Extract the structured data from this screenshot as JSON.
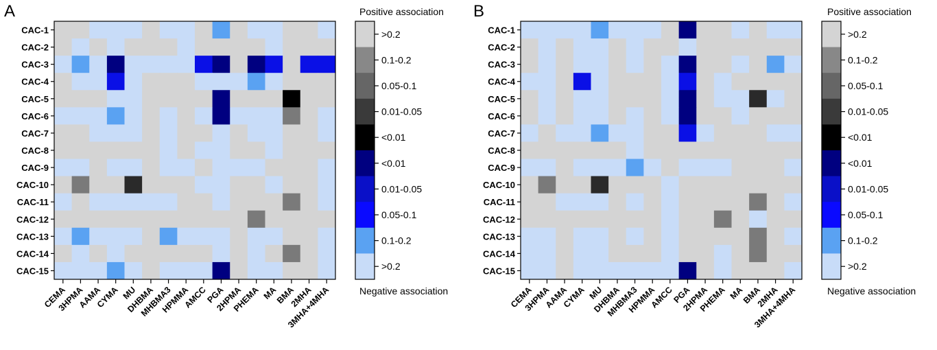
{
  "chart_data": [
    {
      "type": "heatmap",
      "panel_label": "A",
      "rows": [
        "CAC-1",
        "CAC-2",
        "CAC-3",
        "CAC-4",
        "CAC-5",
        "CAC-6",
        "CAC-7",
        "CAC-8",
        "CAC-9",
        "CAC-10",
        "CAC-11",
        "CAC-12",
        "CAC-13",
        "CAC-14",
        "CAC-15"
      ],
      "columns": [
        "CEMA",
        "3HPMA",
        "AAMA",
        "CYMA",
        "MU",
        "DHBMA",
        "MHBMA3",
        "HPMMA",
        "AMCC",
        "PGA",
        "2HPMA",
        "PHEMA",
        "MA",
        "BMA",
        "2MHA",
        "3MHA+4MHA"
      ],
      "category_values": [
        [
          5,
          5,
          1,
          1,
          1,
          5,
          1,
          1,
          5,
          2,
          5,
          1,
          1,
          5,
          5,
          1
        ],
        [
          5,
          1,
          5,
          1,
          5,
          5,
          5,
          1,
          5,
          5,
          5,
          5,
          1,
          5,
          5,
          5
        ],
        [
          1,
          2,
          1,
          7,
          1,
          1,
          1,
          1,
          8,
          7,
          5,
          7,
          8,
          5,
          8,
          8
        ],
        [
          5,
          1,
          1,
          8,
          1,
          5,
          5,
          5,
          1,
          1,
          1,
          2,
          1,
          5,
          5,
          5
        ],
        [
          5,
          5,
          5,
          1,
          1,
          5,
          5,
          5,
          5,
          7,
          5,
          5,
          5,
          11,
          5,
          5
        ],
        [
          1,
          1,
          1,
          2,
          1,
          5,
          1,
          5,
          1,
          7,
          1,
          1,
          1,
          9,
          5,
          1
        ],
        [
          5,
          5,
          1,
          1,
          1,
          5,
          1,
          5,
          5,
          1,
          5,
          1,
          1,
          5,
          5,
          1
        ],
        [
          5,
          5,
          5,
          5,
          5,
          5,
          1,
          5,
          1,
          1,
          5,
          5,
          1,
          5,
          5,
          5
        ],
        [
          1,
          1,
          5,
          1,
          1,
          5,
          1,
          1,
          5,
          1,
          1,
          1,
          5,
          5,
          5,
          1
        ],
        [
          5,
          9,
          5,
          5,
          10,
          5,
          5,
          5,
          1,
          1,
          5,
          5,
          1,
          5,
          5,
          1
        ],
        [
          1,
          5,
          1,
          1,
          1,
          1,
          1,
          5,
          5,
          1,
          5,
          5,
          5,
          9,
          5,
          1
        ],
        [
          5,
          5,
          5,
          5,
          5,
          5,
          5,
          5,
          5,
          5,
          5,
          9,
          5,
          5,
          5,
          5
        ],
        [
          1,
          2,
          1,
          1,
          1,
          5,
          2,
          1,
          1,
          1,
          5,
          1,
          1,
          5,
          5,
          1
        ],
        [
          5,
          1,
          5,
          1,
          5,
          5,
          5,
          5,
          5,
          1,
          5,
          1,
          5,
          9,
          5,
          1
        ],
        [
          1,
          1,
          1,
          2,
          1,
          5,
          1,
          1,
          1,
          7,
          5,
          1,
          1,
          5,
          5,
          1
        ]
      ]
    },
    {
      "type": "heatmap",
      "panel_label": "B",
      "rows": [
        "CAC-1",
        "CAC-2",
        "CAC-3",
        "CAC-4",
        "CAC-5",
        "CAC-6",
        "CAC-7",
        "CAC-8",
        "CAC-9",
        "CAC-10",
        "CAC-11",
        "CAC-12",
        "CAC-13",
        "CAC-14",
        "CAC-15"
      ],
      "columns": [
        "CEMA",
        "3HPMA",
        "AAMA",
        "CYMA",
        "MU",
        "DHBMA",
        "MHBMA3",
        "HPMMA",
        "AMCC",
        "PGA",
        "2HPMA",
        "PHEMA",
        "MA",
        "BMA",
        "2MHA",
        "3MHA+4MHA"
      ],
      "category_values": [
        [
          1,
          1,
          1,
          1,
          2,
          1,
          1,
          1,
          5,
          7,
          5,
          5,
          1,
          5,
          1,
          1
        ],
        [
          5,
          1,
          5,
          1,
          1,
          5,
          1,
          5,
          5,
          1,
          5,
          5,
          5,
          5,
          5,
          5
        ],
        [
          5,
          1,
          5,
          1,
          1,
          5,
          1,
          5,
          1,
          7,
          5,
          5,
          1,
          5,
          2,
          1
        ],
        [
          1,
          1,
          5,
          8,
          1,
          5,
          5,
          5,
          1,
          8,
          5,
          1,
          5,
          5,
          5,
          5
        ],
        [
          5,
          1,
          5,
          1,
          1,
          5,
          5,
          5,
          1,
          7,
          5,
          1,
          1,
          10,
          1,
          5
        ],
        [
          5,
          1,
          5,
          1,
          1,
          5,
          1,
          5,
          1,
          7,
          5,
          5,
          1,
          5,
          5,
          5
        ],
        [
          1,
          5,
          1,
          1,
          2,
          1,
          1,
          5,
          5,
          8,
          1,
          5,
          5,
          5,
          1,
          1
        ],
        [
          5,
          5,
          5,
          5,
          5,
          5,
          1,
          5,
          5,
          5,
          5,
          5,
          5,
          5,
          5,
          5
        ],
        [
          1,
          1,
          5,
          1,
          1,
          1,
          2,
          1,
          5,
          1,
          1,
          1,
          5,
          5,
          5,
          1
        ],
        [
          5,
          9,
          5,
          5,
          10,
          5,
          5,
          5,
          1,
          5,
          5,
          5,
          5,
          5,
          5,
          5
        ],
        [
          5,
          5,
          1,
          1,
          1,
          5,
          1,
          5,
          1,
          5,
          5,
          5,
          5,
          9,
          5,
          1
        ],
        [
          5,
          5,
          5,
          5,
          5,
          5,
          5,
          5,
          1,
          5,
          5,
          9,
          5,
          1,
          5,
          5
        ],
        [
          1,
          1,
          5,
          1,
          1,
          5,
          1,
          5,
          1,
          5,
          5,
          5,
          5,
          9,
          5,
          1
        ],
        [
          1,
          1,
          5,
          1,
          1,
          5,
          5,
          5,
          1,
          5,
          5,
          1,
          5,
          9,
          5,
          5
        ],
        [
          1,
          1,
          5,
          1,
          1,
          1,
          1,
          1,
          1,
          7,
          5,
          1,
          5,
          5,
          5,
          1
        ]
      ]
    }
  ],
  "legend": {
    "top_label": "Positive association",
    "bottom_label": "Negative association",
    "entries": [
      {
        "label": ">0.2",
        "color": "#d4d4d4"
      },
      {
        "label": "0.1-0.2",
        "color": "#888888"
      },
      {
        "label": "0.05-0.1",
        "color": "#666666"
      },
      {
        "label": "0.01-0.05",
        "color": "#3a3a3a"
      },
      {
        "label": "<0.01",
        "color": "#000000"
      },
      {
        "label": "<0.01",
        "color": "#000080"
      },
      {
        "label": "0.01-0.05",
        "color": "#0a10c8"
      },
      {
        "label": "0.05-0.1",
        "color": "#0a0aff"
      },
      {
        "label": "0.1-0.2",
        "color": "#5aa2f2"
      },
      {
        "label": ">0.2",
        "color": "#c8dcf8"
      }
    ]
  },
  "cell_colors": {
    "1": "#c8dcf8",
    "2": "#5aa2f2",
    "5": "#d4d4d4",
    "7": "#000080",
    "8": "#0a10e6",
    "9": "#7a7a7a",
    "10": "#2a2a2a",
    "11": "#000000"
  }
}
